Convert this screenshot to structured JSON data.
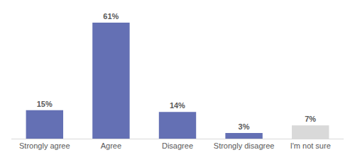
{
  "chart_data": {
    "type": "bar",
    "categories": [
      "Strongly agree",
      "Agree",
      "Disagree",
      "Strongly disagree",
      "I'm not sure"
    ],
    "values": [
      15,
      61,
      14,
      3,
      7
    ],
    "value_labels": [
      "15%",
      "61%",
      "14%",
      "3%",
      "7%"
    ],
    "colors": [
      "#6470b4",
      "#6470b4",
      "#6470b4",
      "#6470b4",
      "#d9d9d9"
    ],
    "ylim": [
      0,
      61
    ],
    "data_labels": true,
    "grid": false,
    "tick_labels": "x"
  }
}
